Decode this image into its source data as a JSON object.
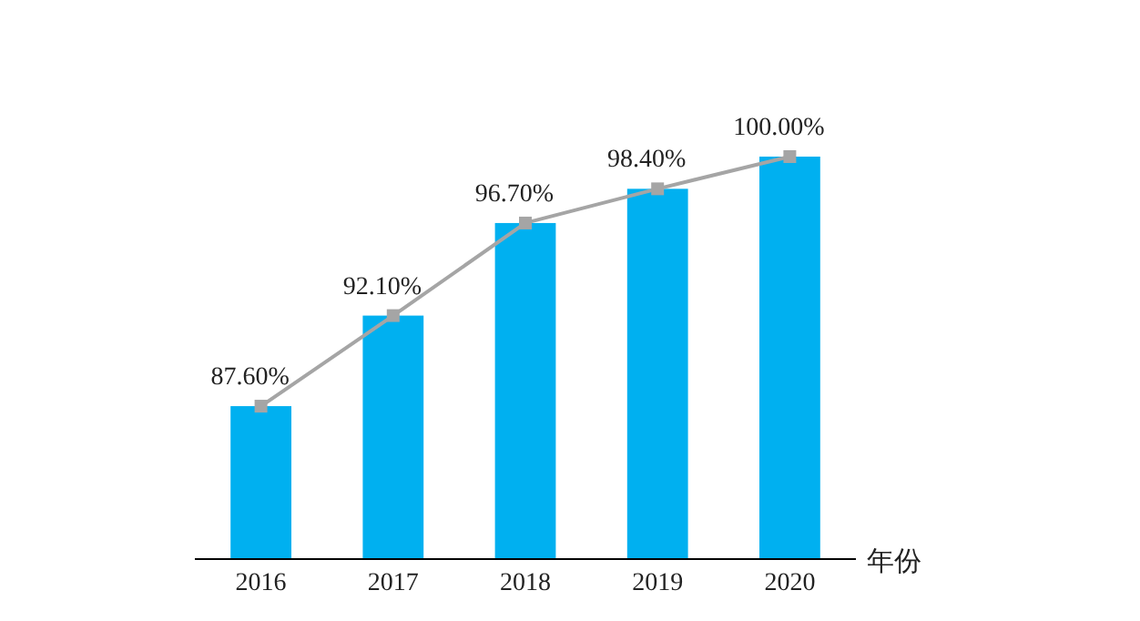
{
  "chart_data": {
    "type": "bar",
    "xlabel": "年份",
    "categories": [
      "2016",
      "2017",
      "2018",
      "2019",
      "2020"
    ],
    "ylim": [
      80,
      100
    ],
    "tick_labels": "x",
    "marker": "square",
    "series": [
      {
        "color": "#00b0f0",
        "values": [
          87.6,
          92.1,
          96.7,
          98.4,
          100
        ]
      },
      {
        "type": "line",
        "color": "#a5a5a5",
        "values": [
          87.6,
          92.1,
          96.7,
          98.4,
          100
        ],
        "value_labels": [
          "87.60%",
          "92.10%",
          "96.70%",
          "98.40%",
          "100.00%"
        ]
      }
    ]
  }
}
